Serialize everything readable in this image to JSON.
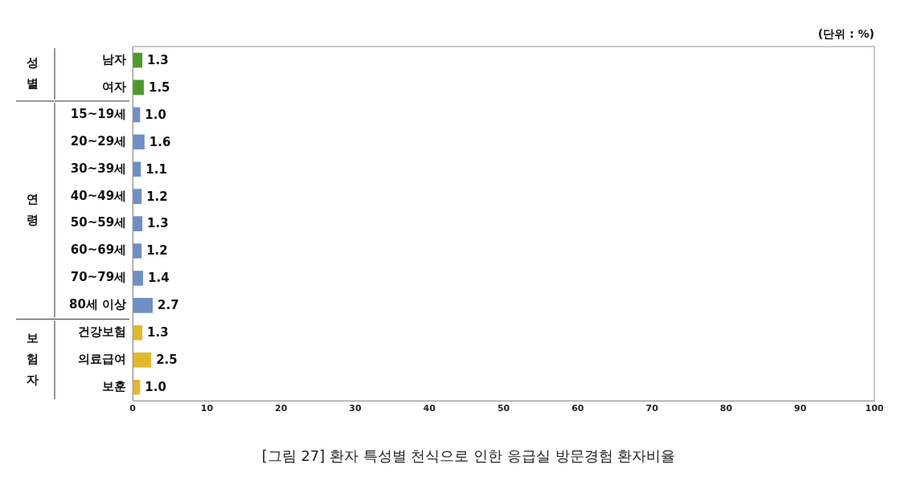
{
  "chart_data": {
    "type": "bar",
    "orientation": "horizontal",
    "title": "[그림 27] 환자 특성별 천식으로 인한 응급실 방문경험 환자비율",
    "categories": [
      "남자",
      "여자",
      "15~19세",
      "20~29세",
      "30~39세",
      "40~49세",
      "50~59세",
      "60~69세",
      "70~79세",
      "80세 이상",
      "건강보험",
      "의료급여",
      "보훈"
    ],
    "values": [
      1.3,
      1.5,
      1.0,
      1.6,
      1.1,
      1.2,
      1.3,
      1.2,
      1.4,
      2.7,
      1.3,
      2.5,
      1.0
    ],
    "value_labels": [
      "1.3",
      "1.5",
      "1.0",
      "1.6",
      "1.1",
      "1.2",
      "1.3",
      "1.2",
      "1.4",
      "2.7",
      "1.3",
      "2.5",
      "1.0"
    ],
    "colors": [
      "#4e9a2e",
      "#4e9a2e",
      "#6f8fc4",
      "#6f8fc4",
      "#6f8fc4",
      "#6f8fc4",
      "#6f8fc4",
      "#6f8fc4",
      "#6f8fc4",
      "#6f8fc4",
      "#e0b830",
      "#e0b830",
      "#e0b830"
    ],
    "xlim": [
      0,
      100
    ],
    "xticks": [
      0,
      10,
      20,
      30,
      40,
      50,
      60,
      70,
      80,
      90,
      100
    ],
    "grid": false,
    "legend": false,
    "annotations": [
      "(단위 : %)",
      "성별",
      "연령",
      "보험자"
    ]
  }
}
